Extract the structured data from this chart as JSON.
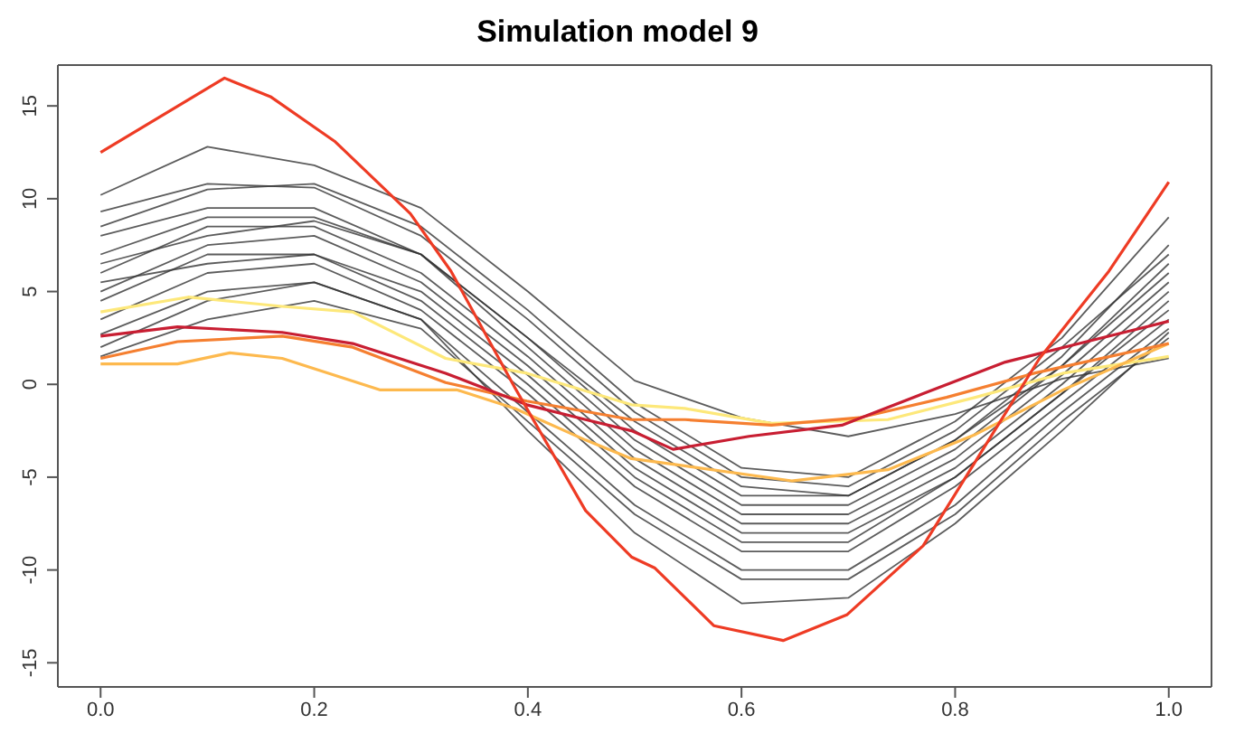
{
  "chart_data": {
    "type": "line",
    "title": "Simulation model 9",
    "marker": "none",
    "line_style": "solid",
    "legend": false,
    "x": [
      0,
      0.1,
      0.2,
      0.3,
      0.4,
      0.5,
      0.6,
      0.7,
      0.8,
      0.9,
      1.0
    ],
    "xlim": [
      -0.04,
      1.04
    ],
    "xticks": [
      {
        "value": 0,
        "label": "0.0"
      },
      0.2,
      0.4,
      0.6,
      0.8,
      {
        "value": 1,
        "label": "1.0"
      }
    ],
    "ylim": [
      -16.3,
      17.2
    ],
    "yticks": [
      -15,
      -10,
      -5,
      0,
      5,
      10,
      15
    ],
    "series": [
      {
        "color": "#333333",
        "values": [
          10.2,
          12.8,
          11.8,
          9.5,
          5,
          0.2,
          -1.8,
          -2.8,
          -1.6,
          0.3,
          1.4
        ]
      },
      {
        "color": "#333333",
        "values": [
          9.3,
          10.8,
          10.6,
          8,
          3.5,
          -1.5,
          -5,
          -5.5,
          -2.5,
          2,
          7
        ]
      },
      {
        "color": "#333333",
        "values": [
          8.5,
          10.5,
          10.8,
          8.5,
          4,
          -1,
          -4.5,
          -5,
          -2,
          2.5,
          9
        ]
      },
      {
        "color": "#333333",
        "values": [
          7,
          9,
          9,
          7,
          2.5,
          -2.5,
          -6,
          -6,
          -3,
          1,
          6.5
        ]
      },
      {
        "color": "#333333",
        "values": [
          6,
          8.5,
          8.5,
          6,
          1.5,
          -3.5,
          -7,
          -7,
          -4,
          0.5,
          5.5
        ]
      },
      {
        "color": "#333333",
        "values": [
          5,
          7.5,
          8,
          5.5,
          1,
          -4,
          -7.5,
          -7.5,
          -4.5,
          0,
          5
        ]
      },
      {
        "color": "#333333",
        "values": [
          4.5,
          7,
          7,
          4.5,
          0,
          -5,
          -8.5,
          -8.5,
          -5,
          -0.5,
          4
        ]
      },
      {
        "color": "#333333",
        "values": [
          3.5,
          6,
          6.5,
          4,
          -0.5,
          -5.5,
          -9,
          -9,
          -5.5,
          -1,
          3.5
        ]
      },
      {
        "color": "#333333",
        "values": [
          2.7,
          5,
          5.5,
          3.5,
          -1.5,
          -6.5,
          -10,
          -10,
          -6.5,
          -1.5,
          3
        ]
      },
      {
        "color": "#333333",
        "values": [
          1.5,
          3.5,
          4.5,
          3,
          -2,
          -7,
          -10.5,
          -10.5,
          -7,
          -2,
          2.5
        ]
      },
      {
        "color": "#333333",
        "values": [
          2,
          4.5,
          5.5,
          3.5,
          -2.5,
          -8,
          -11.8,
          -11.5,
          -7.5,
          -2.5,
          2.8
        ]
      },
      {
        "color": "#333333",
        "values": [
          6.5,
          8,
          8.8,
          7,
          2.5,
          -2,
          -5.5,
          -6,
          -3,
          1.5,
          7.5
        ]
      },
      {
        "color": "#333333",
        "values": [
          8,
          9.5,
          9.5,
          7,
          2,
          -3,
          -6.5,
          -6.5,
          -3.5,
          1,
          6
        ]
      },
      {
        "color": "#333333",
        "values": [
          5.5,
          6.5,
          7,
          5,
          0.5,
          -4.5,
          -8,
          -8,
          -5,
          -0.5,
          4.5
        ]
      },
      {
        "color": "#fde87a",
        "x": [
          0,
          0.082,
          0.17,
          0.236,
          0.323,
          0.399,
          0.497,
          0.547,
          0.628,
          0.737,
          0.819,
          0.901,
          1.0
        ],
        "values": [
          3.9,
          4.7,
          4.2,
          3.9,
          1.4,
          0.6,
          -1.1,
          -1.3,
          -2.1,
          -1.9,
          -0.7,
          0.6,
          1.5
        ]
      },
      {
        "color": "#fdb94e",
        "x": [
          0,
          0.072,
          0.121,
          0.17,
          0.262,
          0.334,
          0.388,
          0.454,
          0.497,
          0.536,
          0.647,
          0.737,
          0.819,
          0.901,
          1.0
        ],
        "values": [
          1.1,
          1.1,
          1.7,
          1.4,
          -0.3,
          -0.3,
          -1.3,
          -3.0,
          -4.0,
          -4.3,
          -5.2,
          -4.6,
          -2.7,
          -0.3,
          2.2
        ]
      },
      {
        "color": "#f57f30",
        "x": [
          0,
          0.072,
          0.17,
          0.236,
          0.323,
          0.399,
          0.497,
          0.547,
          0.628,
          0.71,
          0.792,
          0.874,
          1.0
        ],
        "values": [
          1.4,
          2.3,
          2.6,
          2.0,
          0.1,
          -0.9,
          -1.9,
          -1.9,
          -2.2,
          -1.8,
          -0.7,
          0.6,
          2.2
        ]
      },
      {
        "color": "#c81e32",
        "x": [
          0,
          0.072,
          0.17,
          0.236,
          0.323,
          0.399,
          0.454,
          0.497,
          0.536,
          0.607,
          0.694,
          0.77,
          0.847,
          0.923,
          1.0
        ],
        "values": [
          2.6,
          3.1,
          2.8,
          2.2,
          0.6,
          -1.1,
          -1.9,
          -2.5,
          -3.5,
          -2.8,
          -2.2,
          -0.5,
          1.2,
          2.3,
          3.4
        ]
      },
      {
        "color": "#ee3b24",
        "x": [
          0,
          0.116,
          0.159,
          0.219,
          0.29,
          0.328,
          0.388,
          0.454,
          0.497,
          0.519,
          0.574,
          0.639,
          0.699,
          0.77,
          0.825,
          0.879,
          0.944,
          1.0
        ],
        "values": [
          12.5,
          16.5,
          15.5,
          13.1,
          9.2,
          6.1,
          -0.2,
          -6.8,
          -9.3,
          -9.9,
          -13.0,
          -13.8,
          -12.4,
          -8.7,
          -3.6,
          1.4,
          6.1,
          10.9
        ]
      }
    ]
  }
}
